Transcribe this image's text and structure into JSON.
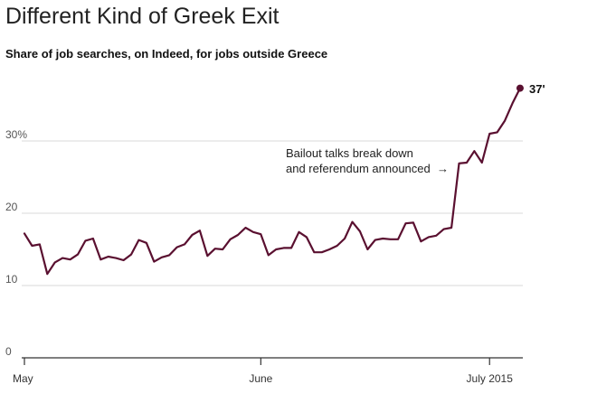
{
  "chart_data": {
    "type": "line",
    "title": "Different Kind of Greek Exit",
    "subtitle": "Share of job searches, on Indeed, for jobs outside Greece",
    "xlabel": "",
    "ylabel": "",
    "ylim": [
      0,
      40
    ],
    "y_ticks": [
      {
        "value": 0,
        "label": "0"
      },
      {
        "value": 10,
        "label": "10"
      },
      {
        "value": 20,
        "label": "20"
      },
      {
        "value": 30,
        "label": "30%"
      }
    ],
    "x_ticks": [
      {
        "value": 0,
        "label": "May"
      },
      {
        "value": 31,
        "label": "June"
      },
      {
        "value": 61,
        "label": "July 2015"
      }
    ],
    "series": [
      {
        "name": "Share of job searches for jobs outside Greece",
        "color": "#5a1030",
        "x": [
          0,
          1,
          2,
          3,
          4,
          5,
          6,
          7,
          8,
          9,
          10,
          11,
          12,
          13,
          14,
          15,
          16,
          17,
          18,
          19,
          20,
          21,
          22,
          23,
          24,
          25,
          26,
          27,
          28,
          29,
          30,
          31,
          32,
          33,
          34,
          35,
          36,
          37,
          38,
          39,
          40,
          41,
          42,
          43,
          44,
          45,
          46,
          47,
          48,
          49,
          50,
          51,
          52,
          53,
          54,
          55,
          56,
          57,
          58,
          59,
          60,
          61,
          62,
          63,
          64,
          65
        ],
        "values": [
          17.2,
          15.5,
          15.7,
          11.6,
          13.2,
          13.8,
          13.6,
          14.3,
          16.2,
          16.5,
          13.6,
          14.0,
          13.8,
          13.5,
          14.3,
          16.3,
          15.9,
          13.3,
          13.9,
          14.2,
          15.3,
          15.7,
          17.0,
          17.6,
          14.1,
          15.1,
          15.0,
          16.4,
          17.0,
          18.0,
          17.4,
          17.1,
          14.2,
          15.0,
          15.2,
          15.2,
          17.4,
          16.7,
          14.6,
          14.6,
          15.0,
          15.5,
          16.5,
          18.8,
          17.5,
          15.0,
          16.3,
          16.5,
          16.4,
          16.4,
          18.6,
          18.7,
          16.1,
          16.7,
          16.9,
          17.8,
          18.0,
          26.9,
          27.0,
          28.6,
          27.0,
          31.0,
          31.2,
          32.8,
          35.2,
          37.3
        ]
      }
    ],
    "annotation": {
      "line1": "Bailout talks break down",
      "line2": "and referendum announced",
      "arrow": "→"
    },
    "end_label": "37'"
  }
}
